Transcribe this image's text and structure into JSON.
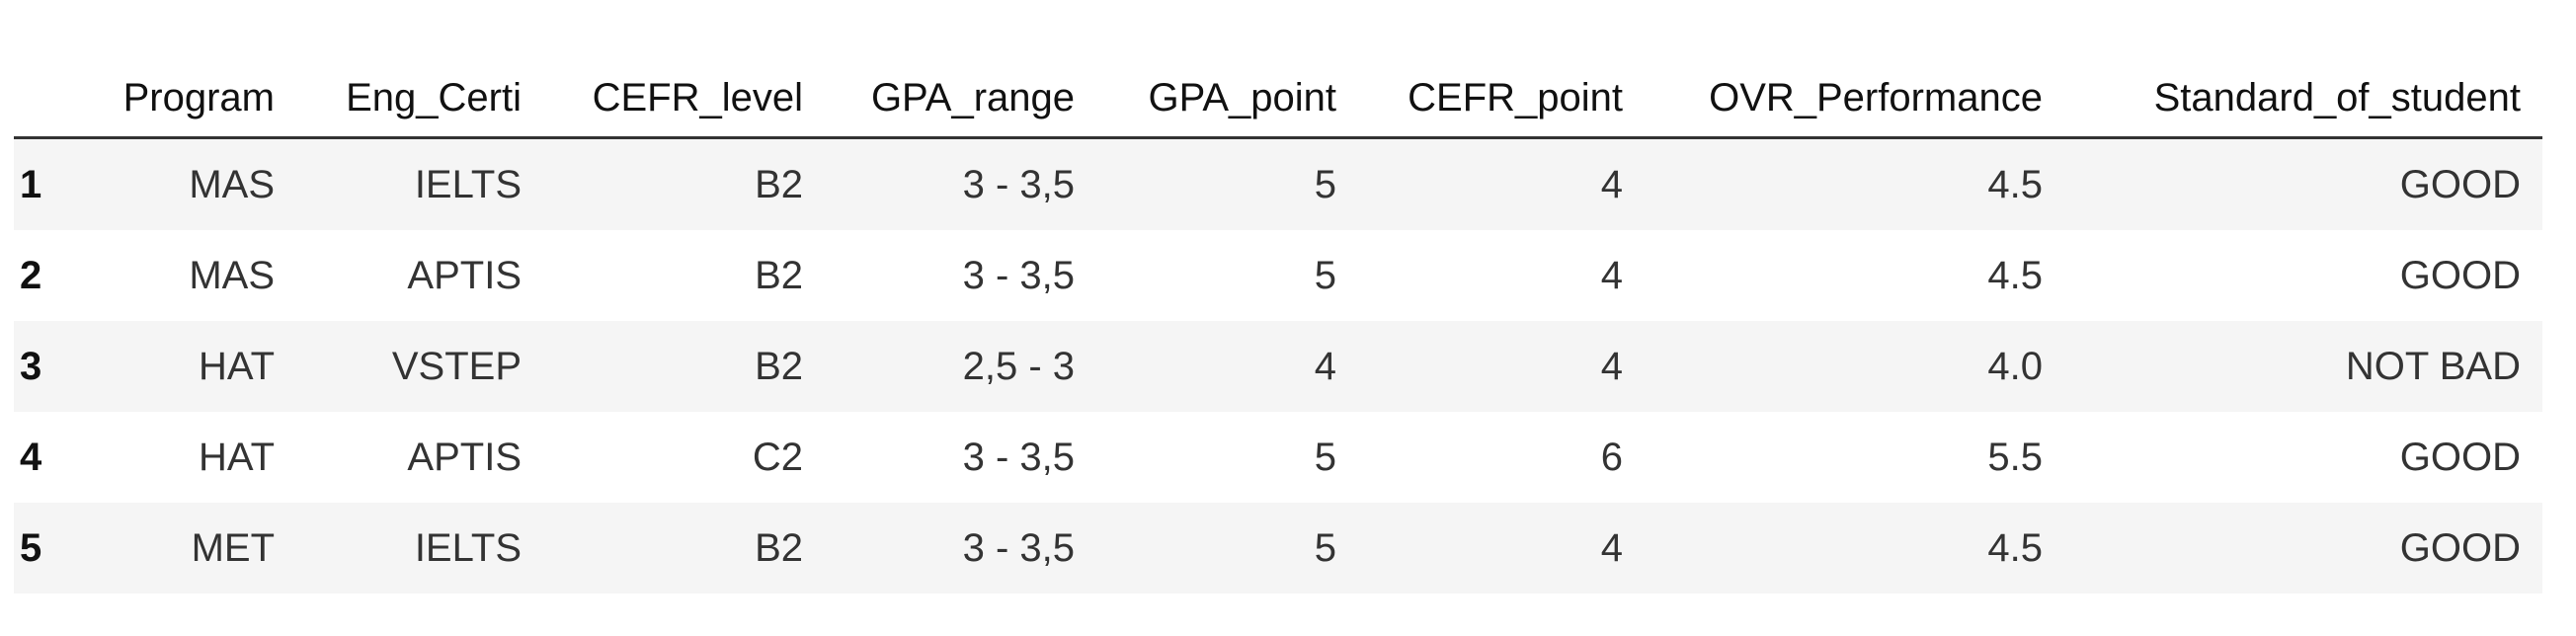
{
  "table": {
    "columns": [
      "",
      "Program",
      "Eng_Certi",
      "CEFR_level",
      "GPA_range",
      "GPA_point",
      "CEFR_point",
      "OVR_Performance",
      "Standard_of_student"
    ],
    "rows": [
      [
        "1",
        "MAS",
        "IELTS",
        "B2",
        "3 - 3,5",
        "5",
        "4",
        "4.5",
        "GOOD"
      ],
      [
        "2",
        "MAS",
        "APTIS",
        "B2",
        "3 - 3,5",
        "5",
        "4",
        "4.5",
        "GOOD"
      ],
      [
        "3",
        "HAT",
        "VSTEP",
        "B2",
        "2,5 - 3",
        "4",
        "4",
        "4.0",
        "NOT BAD"
      ],
      [
        "4",
        "HAT",
        "APTIS",
        "C2",
        "3 - 3,5",
        "5",
        "6",
        "5.5",
        "GOOD"
      ],
      [
        "5",
        "MET",
        "IELTS",
        "B2",
        "3 - 3,5",
        "5",
        "4",
        "4.5",
        "GOOD"
      ]
    ]
  }
}
